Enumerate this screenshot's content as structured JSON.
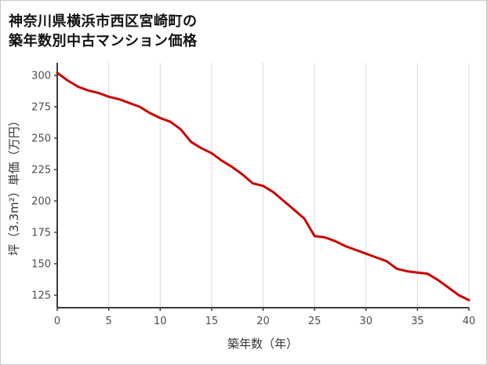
{
  "title": {
    "line1": "神奈川県横浜市西区宮崎町の",
    "line2": "築年数別中古マンション価格"
  },
  "chart_data": {
    "type": "line",
    "title": "神奈川県横浜市西区宮崎町の築年数別中古マンション価格",
    "xlabel": "築年数（年）",
    "ylabel": "坪（3.3m²）単価（万円）",
    "x": [
      0,
      1,
      2,
      3,
      4,
      5,
      6,
      7,
      8,
      9,
      10,
      11,
      12,
      13,
      14,
      15,
      16,
      17,
      18,
      19,
      20,
      21,
      22,
      23,
      24,
      25,
      26,
      27,
      28,
      29,
      30,
      31,
      32,
      33,
      34,
      35,
      36,
      37,
      38,
      39,
      40
    ],
    "values": [
      302,
      296,
      291,
      288,
      286,
      283,
      281,
      278,
      275,
      270,
      266,
      263,
      257,
      247,
      242,
      238,
      232,
      227,
      221,
      214,
      212,
      207,
      200,
      193,
      186,
      172,
      171,
      168,
      164,
      161,
      158,
      155,
      152,
      146,
      144,
      143,
      142,
      137,
      131,
      125,
      121
    ],
    "xlim": [
      0,
      40
    ],
    "ylim": [
      115,
      310
    ],
    "xticks": [
      0,
      5,
      10,
      15,
      20,
      25,
      30,
      35,
      40
    ],
    "yticks": [
      125,
      150,
      175,
      200,
      225,
      250,
      275,
      300
    ],
    "grid": "vertical",
    "legend": "none",
    "line_color": "#cc0000",
    "axis_color": "#3c3c3c",
    "grid_color": "#dcdcdc",
    "tick_color": "#4d4d4d"
  }
}
